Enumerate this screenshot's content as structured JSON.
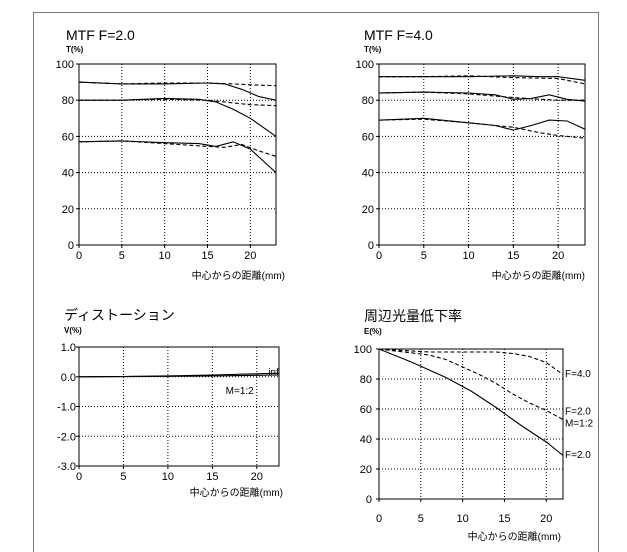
{
  "charts": [
    {
      "type": "line",
      "title": "MTF F=2.0",
      "ylabel": "T(%)",
      "xlabel": "中心からの距離(mm)",
      "xlim": [
        0,
        23
      ],
      "ylim": [
        0,
        100
      ],
      "xticks": [
        0,
        5,
        10,
        15,
        20
      ],
      "yticks": [
        0,
        20,
        40,
        60,
        80,
        100
      ],
      "ytick_labels": [
        "0",
        "20",
        "40",
        "60",
        "80",
        "100"
      ],
      "grid": true,
      "series": [
        {
          "style": "solid",
          "points": [
            [
              0,
              90
            ],
            [
              5,
              89
            ],
            [
              10,
              89
            ],
            [
              15,
              89.5
            ],
            [
              17,
              89
            ],
            [
              19,
              86
            ],
            [
              21,
              82
            ],
            [
              23,
              80
            ]
          ]
        },
        {
          "style": "dashed",
          "points": [
            [
              0,
              90
            ],
            [
              5,
              89
            ],
            [
              10,
              89.5
            ],
            [
              15,
              89.5
            ],
            [
              18,
              89
            ],
            [
              20,
              88.5
            ],
            [
              23,
              88
            ]
          ]
        },
        {
          "style": "solid",
          "points": [
            [
              0,
              80
            ],
            [
              5,
              80
            ],
            [
              10,
              81
            ],
            [
              14,
              80.5
            ],
            [
              16,
              79
            ],
            [
              18,
              75
            ],
            [
              20,
              70
            ],
            [
              23,
              60
            ]
          ]
        },
        {
          "style": "dashed",
          "points": [
            [
              0,
              80
            ],
            [
              5,
              80
            ],
            [
              10,
              80.5
            ],
            [
              15,
              80
            ],
            [
              18,
              78.5
            ],
            [
              20,
              77.5
            ],
            [
              23,
              77
            ]
          ]
        },
        {
          "style": "solid",
          "points": [
            [
              0,
              57
            ],
            [
              5,
              57.5
            ],
            [
              10,
              56.5
            ],
            [
              14,
              56
            ],
            [
              16,
              54.5
            ],
            [
              18,
              57
            ],
            [
              20,
              53
            ],
            [
              23,
              40
            ]
          ]
        },
        {
          "style": "dashed",
          "points": [
            [
              0,
              57
            ],
            [
              5,
              57.5
            ],
            [
              10,
              56
            ],
            [
              15,
              54.5
            ],
            [
              17,
              54
            ],
            [
              19,
              55.5
            ],
            [
              21,
              52
            ],
            [
              23,
              49
            ]
          ]
        }
      ]
    },
    {
      "type": "line",
      "title": "MTF F=4.0",
      "ylabel": "T(%)",
      "xlabel": "中心からの距離(mm)",
      "xlim": [
        0,
        23
      ],
      "ylim": [
        0,
        100
      ],
      "xticks": [
        0,
        5,
        10,
        15,
        20
      ],
      "yticks": [
        0,
        20,
        40,
        60,
        80,
        100
      ],
      "ytick_labels": [
        "0",
        "20",
        "40",
        "60",
        "80",
        "100"
      ],
      "grid": true,
      "series": [
        {
          "style": "solid",
          "points": [
            [
              0,
              93
            ],
            [
              5,
              93
            ],
            [
              10,
              93
            ],
            [
              15,
              93.5
            ],
            [
              18,
              93
            ],
            [
              20,
              93
            ],
            [
              23,
              91
            ]
          ]
        },
        {
          "style": "dashed",
          "points": [
            [
              0,
              93
            ],
            [
              5,
              93
            ],
            [
              10,
              93.5
            ],
            [
              15,
              92.5
            ],
            [
              20,
              92
            ],
            [
              23,
              89
            ]
          ]
        },
        {
          "style": "solid",
          "points": [
            [
              0,
              84
            ],
            [
              5,
              84.5
            ],
            [
              10,
              84
            ],
            [
              13,
              83
            ],
            [
              15,
              80.5
            ],
            [
              17,
              81
            ],
            [
              19,
              83
            ],
            [
              21,
              80.5
            ],
            [
              23,
              79.5
            ]
          ]
        },
        {
          "style": "dashed",
          "points": [
            [
              0,
              84
            ],
            [
              5,
              84.5
            ],
            [
              10,
              83.5
            ],
            [
              15,
              81.5
            ],
            [
              18,
              80.5
            ],
            [
              20,
              80
            ],
            [
              23,
              80
            ]
          ]
        },
        {
          "style": "solid",
          "points": [
            [
              0,
              69
            ],
            [
              5,
              70
            ],
            [
              10,
              67.5
            ],
            [
              13,
              66
            ],
            [
              15,
              63.5
            ],
            [
              17,
              66
            ],
            [
              19,
              69
            ],
            [
              21,
              68.5
            ],
            [
              23,
              64
            ]
          ]
        },
        {
          "style": "dashed",
          "points": [
            [
              0,
              69
            ],
            [
              5,
              69.5
            ],
            [
              10,
              67.5
            ],
            [
              15,
              65
            ],
            [
              18,
              62
            ],
            [
              20,
              60.5
            ],
            [
              23,
              59
            ]
          ]
        }
      ]
    },
    {
      "type": "line",
      "title": "ディストーション",
      "ylabel": "V(%)",
      "xlabel": "中心からの距離(mm)",
      "xlim": [
        0,
        22.5
      ],
      "ylim": [
        -3,
        1
      ],
      "xticks": [
        0,
        5,
        10,
        15,
        20
      ],
      "yticks": [
        -3,
        -2,
        -1,
        0,
        1
      ],
      "ytick_labels": [
        "-3.0",
        "-2.0",
        "-1.0",
        "0.0",
        "1.0"
      ],
      "grid": true,
      "annotations": [
        {
          "text": "inf",
          "x": 21.3,
          "y": 0.18
        },
        {
          "text": "M=1:2",
          "x": 16.5,
          "y": -0.45
        }
      ],
      "series": [
        {
          "name": "inf",
          "style": "solid",
          "points": [
            [
              0,
              0
            ],
            [
              5,
              0.01
            ],
            [
              10,
              0.03
            ],
            [
              15,
              0.06
            ],
            [
              20,
              0.1
            ],
            [
              22.5,
              0.12
            ]
          ]
        },
        {
          "name": "M=1:2",
          "style": "solid",
          "points": [
            [
              0,
              0
            ],
            [
              5,
              0.005
            ],
            [
              10,
              0.015
            ],
            [
              15,
              0.03
            ],
            [
              20,
              0.05
            ],
            [
              22.5,
              0.06
            ]
          ]
        }
      ]
    },
    {
      "type": "line",
      "title": "周辺光量低下率",
      "ylabel": "E(%)",
      "xlabel": "中心からの距離(mm)",
      "xlim": [
        0,
        22
      ],
      "ylim": [
        0,
        100
      ],
      "xticks": [
        0,
        5,
        10,
        15,
        20
      ],
      "yticks": [
        0,
        20,
        40,
        60,
        80,
        100
      ],
      "ytick_labels": [
        "0",
        "20",
        "40",
        "60",
        "80",
        "100"
      ],
      "grid": true,
      "annotations": [
        {
          "text": "F=4.0",
          "y": 84
        },
        {
          "text": "F=2.0",
          "y": 59
        },
        {
          "text": "M=1:2",
          "y": 51
        },
        {
          "text": "F=2.0",
          "y": 30
        }
      ],
      "series": [
        {
          "name": "F=4.0",
          "style": "dashed",
          "points": [
            [
              0,
              100
            ],
            [
              3,
              99
            ],
            [
              6,
              98
            ],
            [
              10,
              98
            ],
            [
              14,
              98
            ],
            [
              16,
              97
            ],
            [
              18,
              95
            ],
            [
              20,
              91
            ],
            [
              22,
              83
            ]
          ]
        },
        {
          "name": "F=2.0 M=1:2",
          "style": "dashed",
          "points": [
            [
              0,
              100
            ],
            [
              3,
              98
            ],
            [
              6,
              96
            ],
            [
              8,
              93
            ],
            [
              10,
              88
            ],
            [
              12,
              83
            ],
            [
              14,
              77
            ],
            [
              16,
              70
            ],
            [
              18,
              64
            ],
            [
              20,
              59
            ],
            [
              22,
              53
            ]
          ]
        },
        {
          "name": "F=2.0",
          "style": "solid",
          "points": [
            [
              0,
              100
            ],
            [
              4,
              91
            ],
            [
              8,
              81
            ],
            [
              11,
              72
            ],
            [
              14,
              61
            ],
            [
              17,
              49
            ],
            [
              20,
              38
            ],
            [
              22,
              29
            ]
          ]
        }
      ]
    }
  ]
}
